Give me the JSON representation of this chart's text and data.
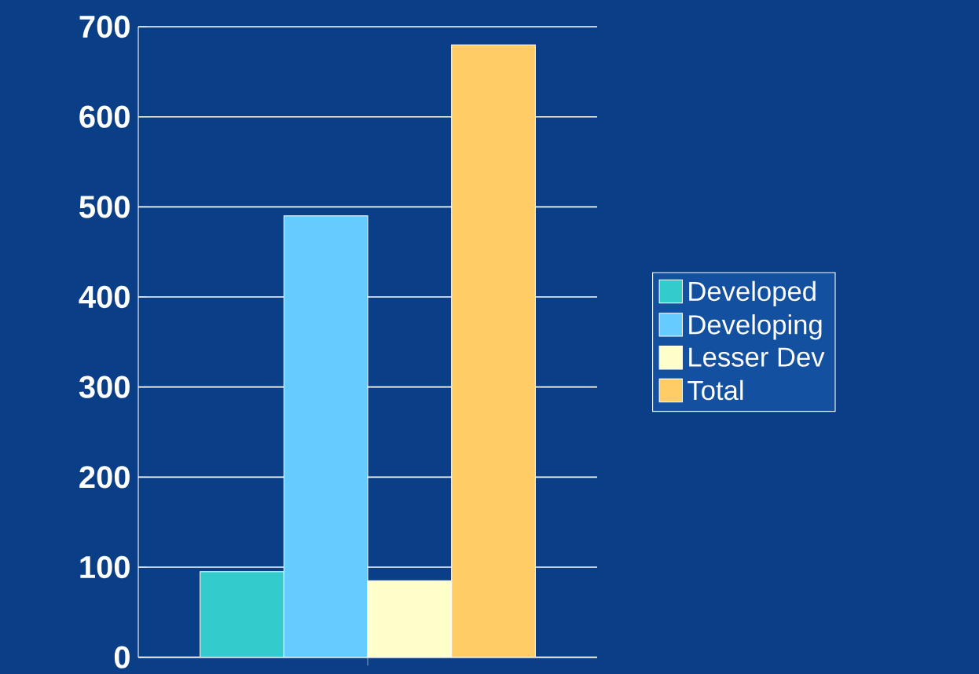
{
  "chart_data": {
    "type": "bar",
    "categories": [
      null
    ],
    "series": [
      {
        "name": "Developed",
        "color": "#33cccc",
        "values": [
          95
        ]
      },
      {
        "name": "Developing",
        "color": "#66ccff",
        "values": [
          490
        ]
      },
      {
        "name": "Lesser Dev",
        "color": "#ffffcc",
        "values": [
          85
        ]
      },
      {
        "name": "Total",
        "color": "#ffcc66",
        "values": [
          680
        ]
      }
    ],
    "ylim": [
      0,
      700
    ],
    "yticks": [
      0,
      100,
      200,
      300,
      400,
      500,
      600,
      700
    ],
    "grid": "y",
    "legend": "right"
  }
}
